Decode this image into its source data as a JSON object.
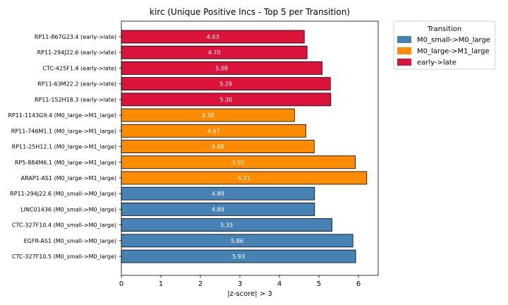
{
  "chart_data": {
    "type": "bar",
    "orientation": "horizontal",
    "title": "kirc (Unique Positive lncs - Top 5 per Transition)",
    "xlabel": "|z-score| > 3",
    "ylabel": "",
    "xlim": [
      0,
      6.5
    ],
    "xticks": [
      0,
      1,
      2,
      3,
      4,
      5,
      6
    ],
    "grid": false,
    "legend": {
      "title": "Transition",
      "placement": "outside-top-right",
      "entries": [
        {
          "label": "M0_small->M0_large",
          "color": "#4682b4"
        },
        {
          "label": "M0_large->M1_large",
          "color": "#ff8c00"
        },
        {
          "label": "early->late",
          "color": "#dc143c"
        }
      ]
    },
    "bars": [
      {
        "label": "RP11-867G23.4 (early->late)",
        "value": 4.63,
        "value_label": "4.63",
        "group": "early->late",
        "color": "#dc143c"
      },
      {
        "label": "RP11-294J22.6 (early->late)",
        "value": 4.7,
        "value_label": "4.70",
        "group": "early->late",
        "color": "#dc143c"
      },
      {
        "label": "CTC-425F1.4 (early->late)",
        "value": 5.08,
        "value_label": "5.08",
        "group": "early->late",
        "color": "#dc143c"
      },
      {
        "label": "RP11-63M22.2 (early->late)",
        "value": 5.29,
        "value_label": "5.29",
        "group": "early->late",
        "color": "#dc143c"
      },
      {
        "label": "RP11-152H18.3 (early->late)",
        "value": 5.3,
        "value_label": "5.30",
        "group": "early->late",
        "color": "#dc143c"
      },
      {
        "label": "RP11-1143G9.4 (M0_large->M1_large)",
        "value": 4.38,
        "value_label": "4.38",
        "group": "M0_large->M1_large",
        "color": "#ff8c00"
      },
      {
        "label": "RP11-746M1.1 (M0_large->M1_large)",
        "value": 4.67,
        "value_label": "4.67",
        "group": "M0_large->M1_large",
        "color": "#ff8c00"
      },
      {
        "label": "RP11-25H12.1 (M0_large->M1_large)",
        "value": 4.88,
        "value_label": "4.88",
        "group": "M0_large->M1_large",
        "color": "#ff8c00"
      },
      {
        "label": "RP5-884M6.1 (M0_large->M1_large)",
        "value": 5.92,
        "value_label": "5.92",
        "group": "M0_large->M1_large",
        "color": "#ff8c00"
      },
      {
        "label": "ARAP1-AS1 (M0_large->M1_large)",
        "value": 6.21,
        "value_label": "6.21",
        "group": "M0_large->M1_large",
        "color": "#ff8c00"
      },
      {
        "label": "RP11-294J22.6 (M0_small->M0_large)",
        "value": 4.89,
        "value_label": "4.89",
        "group": "M0_small->M0_large",
        "color": "#4682b4"
      },
      {
        "label": "LINC01436 (M0_small->M0_large)",
        "value": 4.89,
        "value_label": "4.89",
        "group": "M0_small->M0_large",
        "color": "#4682b4"
      },
      {
        "label": "CTC-327F10.4 (M0_small->M0_large)",
        "value": 5.33,
        "value_label": "5.33",
        "group": "M0_small->M0_large",
        "color": "#4682b4"
      },
      {
        "label": "EGFR-AS1 (M0_small->M0_large)",
        "value": 5.86,
        "value_label": "5.86",
        "group": "M0_small->M0_large",
        "color": "#4682b4"
      },
      {
        "label": "CTC-327F10.5 (M0_small->M0_large)",
        "value": 5.93,
        "value_label": "5.93",
        "group": "M0_small->M0_large",
        "color": "#4682b4"
      }
    ]
  }
}
